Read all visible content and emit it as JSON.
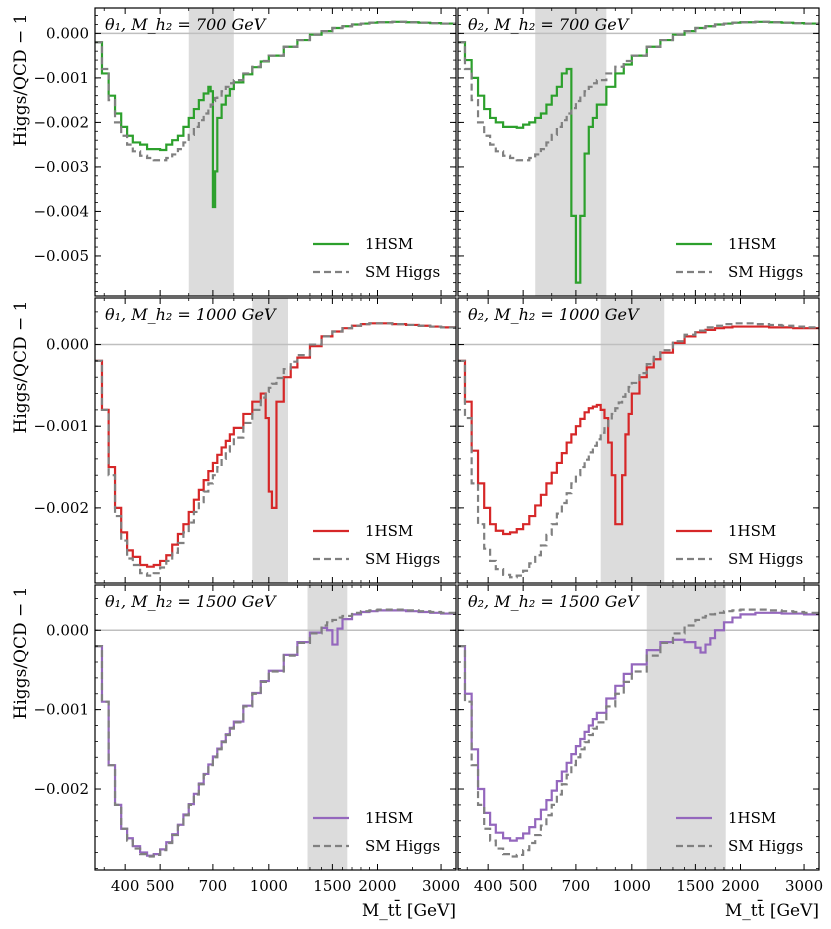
{
  "chart_data": {
    "type": "line",
    "xlabel": "M_tt̄ [GeV]",
    "ylabel": "Higgs/QCD − 1",
    "xscale": "log",
    "xlim": [
      330,
      3300
    ],
    "xticks": [
      400,
      500,
      700,
      1000,
      1500,
      2000,
      3000
    ],
    "series_names": [
      "1HSM",
      "SM Higgs"
    ],
    "colors": {
      "1HSM_row1": "#2ca02c",
      "1HSM_row2": "#d62728",
      "1HSM_row3": "#9467bd",
      "sm": "#808080",
      "band": "#dcdcdc",
      "zero_line": "#bfbfbf"
    },
    "rows": [
      {
        "mass_label": "700 GeV",
        "ylim": [
          -0.0059,
          0.00057
        ],
        "yticks": [
          0.0,
          -0.001,
          -0.002,
          -0.003,
          -0.004,
          -0.005
        ],
        "ytick_labels": [
          "0.000",
          "−0.001",
          "−0.002",
          "−0.003",
          "−0.004",
          "−0.005"
        ]
      },
      {
        "mass_label": "1000 GeV",
        "ylim": [
          -0.00292,
          0.00057
        ],
        "yticks": [
          0.0,
          -0.001,
          -0.002
        ],
        "ytick_labels": [
          "0.000",
          "−0.001",
          "−0.002"
        ]
      },
      {
        "mass_label": "1500 GeV",
        "ylim": [
          -0.00302,
          0.00057
        ],
        "yticks": [
          0.0,
          -0.001,
          -0.002
        ],
        "ytick_labels": [
          "0.000",
          "−0.001",
          "−0.002"
        ]
      }
    ],
    "panels": [
      {
        "row": 0,
        "col": 0,
        "title": "θ₁, M_h₂ = 700 GeV",
        "band": [
          600,
          800
        ],
        "x": [
          330,
          345,
          360,
          375,
          390,
          405,
          420,
          440,
          460,
          480,
          500,
          520,
          540,
          560,
          580,
          600,
          620,
          640,
          660,
          680,
          690,
          700,
          710,
          720,
          740,
          760,
          780,
          800,
          850,
          900,
          950,
          1000,
          1100,
          1200,
          1300,
          1400,
          1500,
          1600,
          1700,
          1800,
          1900,
          2000,
          2200,
          2400,
          2600,
          2800,
          3000,
          3300
        ],
        "sm": [
          -0.0002,
          -0.0008,
          -0.0015,
          -0.002,
          -0.0023,
          -0.0025,
          -0.00265,
          -0.00275,
          -0.0028,
          -0.00285,
          -0.00285,
          -0.0028,
          -0.00272,
          -0.0026,
          -0.00245,
          -0.00228,
          -0.0021,
          -0.00195,
          -0.0018,
          -0.00168,
          -0.0016,
          -0.00152,
          -0.00145,
          -0.0014,
          -0.0013,
          -0.0012,
          -0.00112,
          -0.00105,
          -0.0009,
          -0.00075,
          -0.00062,
          -0.0005,
          -0.0003,
          -0.00015,
          -3e-05,
          5e-05,
          0.00012,
          0.00016,
          0.0002,
          0.00022,
          0.00024,
          0.00025,
          0.00026,
          0.00025,
          0.00024,
          0.00023,
          0.00022,
          0.00021
        ],
        "hsm": [
          -0.0002,
          -0.0009,
          -0.0014,
          -0.0018,
          -0.0021,
          -0.0023,
          -0.00245,
          -0.0025,
          -0.0026,
          -0.0026,
          -0.00262,
          -0.0025,
          -0.0024,
          -0.0023,
          -0.0021,
          -0.0019,
          -0.0017,
          -0.0015,
          -0.00135,
          -0.0012,
          -0.0013,
          -0.0039,
          -0.0031,
          -0.0019,
          -0.0016,
          -0.0014,
          -0.00125,
          -0.0011,
          -0.00092,
          -0.00076,
          -0.00063,
          -0.0005,
          -0.0003,
          -0.00015,
          -3e-05,
          5e-05,
          0.00012,
          0.00016,
          0.0002,
          0.00022,
          0.00024,
          0.00025,
          0.00026,
          0.00025,
          0.00024,
          0.00023,
          0.00022,
          0.00021
        ]
      },
      {
        "row": 0,
        "col": 1,
        "title": "θ₂, M_h₂ = 700 GeV",
        "band": [
          540,
          850
        ],
        "x": [
          330,
          345,
          360,
          375,
          390,
          405,
          420,
          440,
          460,
          480,
          500,
          520,
          540,
          560,
          580,
          600,
          620,
          640,
          660,
          680,
          700,
          720,
          740,
          760,
          780,
          800,
          850,
          900,
          950,
          1000,
          1100,
          1200,
          1300,
          1400,
          1500,
          1600,
          1700,
          1800,
          1900,
          2000,
          2200,
          2400,
          2600,
          2800,
          3000,
          3300
        ],
        "sm": [
          -0.0002,
          -0.0008,
          -0.0015,
          -0.002,
          -0.0023,
          -0.0025,
          -0.00265,
          -0.00275,
          -0.0028,
          -0.00285,
          -0.00285,
          -0.0028,
          -0.00272,
          -0.0026,
          -0.00245,
          -0.00228,
          -0.0021,
          -0.00195,
          -0.0018,
          -0.00168,
          -0.00152,
          -0.0014,
          -0.0013,
          -0.0012,
          -0.00112,
          -0.00105,
          -0.0009,
          -0.00075,
          -0.00062,
          -0.0005,
          -0.0003,
          -0.00015,
          -3e-05,
          5e-05,
          0.00012,
          0.00016,
          0.0002,
          0.00022,
          0.00024,
          0.00025,
          0.00026,
          0.00025,
          0.00024,
          0.00023,
          0.00022,
          0.00021
        ],
        "hsm": [
          -0.0002,
          -0.0006,
          -0.001,
          -0.0014,
          -0.0017,
          -0.0019,
          -0.002,
          -0.0021,
          -0.0021,
          -0.00212,
          -0.00205,
          -0.002,
          -0.0019,
          -0.0018,
          -0.0016,
          -0.0014,
          -0.0012,
          -0.0009,
          -0.0008,
          -0.0041,
          -0.0056,
          -0.0041,
          -0.0027,
          -0.0021,
          -0.0019,
          -0.0016,
          -0.0012,
          -0.0009,
          -0.0007,
          -0.0005,
          -0.0003,
          -0.00015,
          -3e-05,
          5e-05,
          0.00012,
          0.00016,
          0.0002,
          0.00022,
          0.00024,
          0.00025,
          0.00026,
          0.00025,
          0.00024,
          0.00023,
          0.00022,
          0.00021
        ]
      },
      {
        "row": 1,
        "col": 0,
        "title": "θ₁, M_h₂ = 1000 GeV",
        "band": [
          900,
          1130
        ],
        "x": [
          330,
          345,
          360,
          375,
          390,
          405,
          420,
          440,
          460,
          480,
          500,
          520,
          540,
          560,
          580,
          600,
          620,
          640,
          660,
          680,
          700,
          720,
          740,
          760,
          780,
          800,
          850,
          900,
          950,
          980,
          1000,
          1020,
          1050,
          1100,
          1150,
          1200,
          1300,
          1400,
          1500,
          1600,
          1700,
          1800,
          1900,
          2000,
          2200,
          2400,
          2600,
          2800,
          3000,
          3300
        ],
        "sm": [
          -0.0002,
          -0.0008,
          -0.0016,
          -0.0021,
          -0.0024,
          -0.00262,
          -0.0027,
          -0.0028,
          -0.00283,
          -0.0028,
          -0.00273,
          -0.00265,
          -0.00255,
          -0.00243,
          -0.0023,
          -0.00218,
          -0.00205,
          -0.00193,
          -0.0018,
          -0.0017,
          -0.0016,
          -0.0015,
          -0.0014,
          -0.00131,
          -0.00122,
          -0.00114,
          -0.00096,
          -0.0008,
          -0.00065,
          -0.00058,
          -0.00053,
          -0.00048,
          -0.00041,
          -0.0003,
          -0.00021,
          -0.00013,
          0.0,
          0.0001,
          0.00016,
          0.0002,
          0.00023,
          0.00025,
          0.00026,
          0.00026,
          0.00025,
          0.00024,
          0.00023,
          0.00022,
          0.00021,
          0.0002
        ],
        "hsm": [
          -0.0002,
          -0.0008,
          -0.0015,
          -0.002,
          -0.0023,
          -0.00252,
          -0.0026,
          -0.0027,
          -0.00272,
          -0.0027,
          -0.00265,
          -0.00258,
          -0.00245,
          -0.00232,
          -0.0022,
          -0.00205,
          -0.0019,
          -0.00178,
          -0.00166,
          -0.00155,
          -0.00145,
          -0.00135,
          -0.00126,
          -0.00118,
          -0.0011,
          -0.00102,
          -0.00085,
          -0.0007,
          -0.0006,
          -0.0009,
          -0.0018,
          -0.002,
          -0.0007,
          -0.0004,
          -0.00028,
          -0.00016,
          -2e-05,
          0.0001,
          0.00016,
          0.0002,
          0.00023,
          0.00025,
          0.00026,
          0.00026,
          0.00025,
          0.00024,
          0.00023,
          0.00022,
          0.00021,
          0.0002
        ]
      },
      {
        "row": 1,
        "col": 1,
        "title": "θ₂, M_h₂ = 1000 GeV",
        "band": [
          820,
          1230
        ],
        "x": [
          330,
          345,
          360,
          375,
          390,
          405,
          420,
          440,
          460,
          480,
          500,
          520,
          540,
          560,
          580,
          600,
          620,
          640,
          660,
          680,
          700,
          720,
          740,
          760,
          780,
          800,
          820,
          840,
          860,
          880,
          900,
          920,
          940,
          960,
          980,
          1000,
          1050,
          1100,
          1150,
          1200,
          1300,
          1400,
          1500,
          1600,
          1700,
          1800,
          1900,
          2000,
          2200,
          2400,
          2600,
          2800,
          3000,
          3300
        ],
        "sm": [
          -0.0002,
          -0.0009,
          -0.0017,
          -0.0022,
          -0.0025,
          -0.00265,
          -0.00275,
          -0.00282,
          -0.00285,
          -0.00283,
          -0.00277,
          -0.00268,
          -0.00258,
          -0.00246,
          -0.00233,
          -0.0022,
          -0.00207,
          -0.00194,
          -0.00182,
          -0.0017,
          -0.0016,
          -0.0015,
          -0.00141,
          -0.00132,
          -0.00124,
          -0.00116,
          -0.00108,
          -0.001,
          -0.00092,
          -0.00085,
          -0.00078,
          -0.00071,
          -0.00064,
          -0.00058,
          -0.00052,
          -0.00047,
          -0.00035,
          -0.00024,
          -0.00015,
          -7e-05,
          4e-05,
          0.00012,
          0.00017,
          0.00021,
          0.00023,
          0.00025,
          0.00026,
          0.00026,
          0.00025,
          0.00024,
          0.00023,
          0.00022,
          0.00021,
          0.0002
        ],
        "hsm": [
          -0.0002,
          -0.0007,
          -0.0013,
          -0.0017,
          -0.002,
          -0.0022,
          -0.00228,
          -0.00232,
          -0.0023,
          -0.00226,
          -0.0022,
          -0.0021,
          -0.00197,
          -0.00184,
          -0.0017,
          -0.00157,
          -0.00145,
          -0.00133,
          -0.0012,
          -0.0011,
          -0.001,
          -0.00091,
          -0.00083,
          -0.00078,
          -0.00076,
          -0.00074,
          -0.0008,
          -0.0009,
          -0.0012,
          -0.0016,
          -0.0022,
          -0.0022,
          -0.0016,
          -0.0011,
          -0.00085,
          -0.0006,
          -0.0004,
          -0.00028,
          -0.00018,
          -0.0001,
          2e-05,
          0.0001,
          0.00015,
          0.00018,
          0.0002,
          0.00021,
          0.00022,
          0.00022,
          0.00022,
          0.00021,
          0.00021,
          0.0002,
          0.0002,
          0.0002
        ]
      },
      {
        "row": 2,
        "col": 0,
        "title": "θ₁, M_h₂ = 1500 GeV",
        "band": [
          1280,
          1650
        ],
        "x": [
          330,
          345,
          360,
          375,
          390,
          405,
          420,
          440,
          460,
          480,
          500,
          520,
          540,
          560,
          580,
          600,
          620,
          640,
          660,
          680,
          700,
          720,
          740,
          760,
          780,
          800,
          850,
          900,
          950,
          1000,
          1100,
          1200,
          1300,
          1400,
          1450,
          1500,
          1550,
          1600,
          1700,
          1800,
          1900,
          2000,
          2200,
          2400,
          2600,
          2800,
          3000,
          3300
        ],
        "sm": [
          -0.0002,
          -0.0009,
          -0.0017,
          -0.0022,
          -0.0025,
          -0.00265,
          -0.00275,
          -0.00282,
          -0.00285,
          -0.00283,
          -0.00277,
          -0.00268,
          -0.00258,
          -0.00246,
          -0.00233,
          -0.0022,
          -0.00207,
          -0.00194,
          -0.00182,
          -0.0017,
          -0.0016,
          -0.0015,
          -0.00141,
          -0.00132,
          -0.00124,
          -0.00116,
          -0.00096,
          -0.0008,
          -0.00065,
          -0.00052,
          -0.00032,
          -0.00016,
          -4e-05,
          6e-05,
          0.0001,
          0.00013,
          0.00016,
          0.00018,
          0.00022,
          0.00024,
          0.00025,
          0.00026,
          0.00026,
          0.00025,
          0.00024,
          0.00023,
          0.00022,
          0.00021
        ],
        "hsm": [
          -0.0002,
          -0.0009,
          -0.0017,
          -0.0022,
          -0.0025,
          -0.00262,
          -0.00272,
          -0.0028,
          -0.00284,
          -0.00282,
          -0.00276,
          -0.00267,
          -0.00257,
          -0.00245,
          -0.00232,
          -0.00219,
          -0.00206,
          -0.00193,
          -0.00181,
          -0.00169,
          -0.00159,
          -0.00149,
          -0.0014,
          -0.00131,
          -0.00123,
          -0.00115,
          -0.00095,
          -0.00079,
          -0.00064,
          -0.00051,
          -0.00031,
          -0.00015,
          -3e-05,
          3e-05,
          0.0,
          -0.00018,
          2e-05,
          0.00014,
          0.0002,
          0.00023,
          0.00024,
          0.00025,
          0.00025,
          0.00024,
          0.00023,
          0.00022,
          0.00021,
          0.0002
        ]
      },
      {
        "row": 2,
        "col": 1,
        "title": "θ₂, M_h₂ = 1500 GeV",
        "band": [
          1100,
          1820
        ],
        "x": [
          330,
          345,
          360,
          375,
          390,
          405,
          420,
          440,
          460,
          480,
          500,
          520,
          540,
          560,
          580,
          600,
          620,
          640,
          660,
          680,
          700,
          720,
          740,
          760,
          780,
          800,
          850,
          900,
          950,
          1000,
          1100,
          1200,
          1300,
          1400,
          1500,
          1550,
          1600,
          1650,
          1700,
          1800,
          1900,
          2000,
          2200,
          2400,
          2600,
          2800,
          3000,
          3300
        ],
        "sm": [
          -0.0002,
          -0.0009,
          -0.0017,
          -0.0022,
          -0.0025,
          -0.00265,
          -0.00275,
          -0.00282,
          -0.00285,
          -0.00283,
          -0.00277,
          -0.00268,
          -0.00258,
          -0.00246,
          -0.00233,
          -0.0022,
          -0.00207,
          -0.00194,
          -0.00182,
          -0.0017,
          -0.0016,
          -0.0015,
          -0.00141,
          -0.00132,
          -0.00124,
          -0.00116,
          -0.00096,
          -0.0008,
          -0.00065,
          -0.00052,
          -0.00032,
          -0.00016,
          -4e-05,
          6e-05,
          0.00013,
          0.00016,
          0.00018,
          0.0002,
          0.00022,
          0.00024,
          0.00025,
          0.00026,
          0.00026,
          0.00025,
          0.00024,
          0.00023,
          0.00022,
          0.00021
        ],
        "hsm": [
          -0.0002,
          -0.0008,
          -0.0015,
          -0.002,
          -0.0023,
          -0.00245,
          -0.00255,
          -0.00262,
          -0.00265,
          -0.00262,
          -0.00256,
          -0.00248,
          -0.00238,
          -0.00226,
          -0.00214,
          -0.00202,
          -0.0019,
          -0.00178,
          -0.00167,
          -0.00156,
          -0.00146,
          -0.00137,
          -0.00128,
          -0.0012,
          -0.00112,
          -0.00104,
          -0.00086,
          -0.0007,
          -0.00055,
          -0.00043,
          -0.00025,
          -0.00015,
          -0.00012,
          -0.00015,
          -0.00022,
          -0.00028,
          -0.00018,
          -0.0001,
          0.0,
          0.0001,
          0.00016,
          0.0002,
          0.00022,
          0.00022,
          0.00021,
          0.00021,
          0.0002,
          0.0002
        ]
      }
    ]
  }
}
